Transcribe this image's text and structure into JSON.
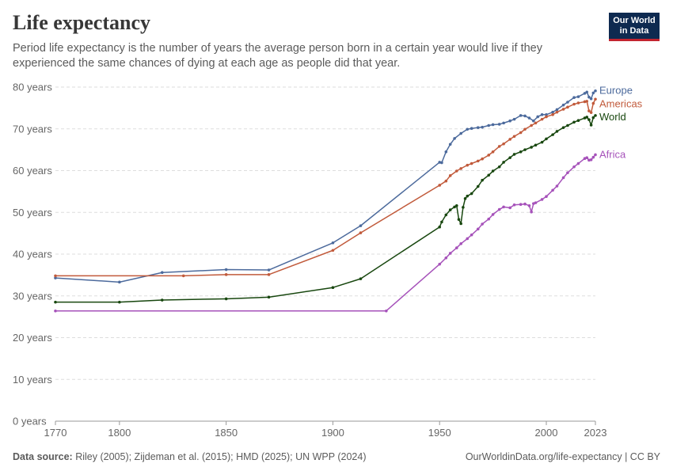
{
  "header": {
    "title": "Life expectancy",
    "subtitle": "Period life expectancy is the number of years the average person born in a certain year would live if they experienced the same chances of dying at each age as people did that year.",
    "logo_line1": "Our World",
    "logo_line2": "in Data"
  },
  "footer": {
    "source_label": "Data source:",
    "source_text": "Riley (2005); Zijdeman et al. (2015); HMD (2025); UN WPP (2024)",
    "link_text": "OurWorldinData.org/life-expectancy | CC BY"
  },
  "colors": {
    "Europe": "#4c6a9c",
    "Americas": "#c15a3b",
    "World": "#18470f",
    "Africa": "#a652ba"
  },
  "chart_data": {
    "type": "line",
    "title": "Life expectancy",
    "xlim": [
      1770,
      2023
    ],
    "ylim": [
      0,
      80
    ],
    "x_ticks": [
      {
        "value": 1770,
        "label": "1770"
      },
      {
        "value": 1800,
        "label": "1800"
      },
      {
        "value": 1850,
        "label": "1850"
      },
      {
        "value": 1900,
        "label": "1900"
      },
      {
        "value": 1950,
        "label": "1950"
      },
      {
        "value": 2000,
        "label": "2000"
      },
      {
        "value": 2023,
        "label": "2023"
      }
    ],
    "y_ticks": [
      {
        "value": 0,
        "label": "0 years"
      },
      {
        "value": 10,
        "label": "10 years"
      },
      {
        "value": 20,
        "label": "20 years"
      },
      {
        "value": 30,
        "label": "30 years"
      },
      {
        "value": 40,
        "label": "40 years"
      },
      {
        "value": 50,
        "label": "50 years"
      },
      {
        "value": 60,
        "label": "60 years"
      },
      {
        "value": 70,
        "label": "70 years"
      },
      {
        "value": 80,
        "label": "80 years"
      }
    ],
    "grid": true,
    "series": [
      {
        "name": "Europe",
        "x": [
          1770,
          1800,
          1820,
          1850,
          1870,
          1900,
          1913,
          1950,
          1951,
          1953,
          1955,
          1957,
          1960,
          1963,
          1965,
          1968,
          1970,
          1973,
          1975,
          1978,
          1980,
          1983,
          1985,
          1988,
          1990,
          1992,
          1994,
          1996,
          1998,
          2000,
          2003,
          2005,
          2008,
          2010,
          2013,
          2015,
          2018,
          2019,
          2020,
          2021,
          2022,
          2023
        ],
        "y": [
          34.3,
          33.3,
          35.6,
          36.3,
          36.2,
          42.7,
          46.8,
          62,
          61.9,
          64.5,
          66.3,
          67.7,
          68.9,
          69.9,
          70.1,
          70.3,
          70.4,
          70.8,
          71,
          71.1,
          71.4,
          71.9,
          72.3,
          73.2,
          73.1,
          72.6,
          71.9,
          72.9,
          73.4,
          73.4,
          74,
          74.6,
          75.7,
          76.4,
          77.5,
          77.7,
          78.5,
          78.8,
          77.6,
          77.2,
          78.6,
          79.1
        ]
      },
      {
        "name": "Americas",
        "x": [
          1770,
          1830,
          1850,
          1870,
          1900,
          1913,
          1950,
          1953,
          1955,
          1958,
          1960,
          1963,
          1965,
          1968,
          1970,
          1973,
          1975,
          1978,
          1980,
          1983,
          1985,
          1988,
          1990,
          1993,
          1995,
          1998,
          2000,
          2003,
          2005,
          2008,
          2010,
          2013,
          2015,
          2018,
          2019,
          2020,
          2021,
          2022,
          2023
        ],
        "y": [
          34.8,
          34.8,
          35.1,
          35.1,
          40.9,
          45.1,
          56.5,
          57.5,
          58.8,
          59.9,
          60.5,
          61.3,
          61.7,
          62.3,
          62.8,
          63.7,
          64.5,
          65.8,
          66.4,
          67.5,
          68.2,
          69.1,
          69.9,
          70.8,
          71.4,
          72.3,
          72.9,
          73.4,
          74,
          74.7,
          75.2,
          75.9,
          76.2,
          76.5,
          76.6,
          74.3,
          73.9,
          76.1,
          77.1
        ]
      },
      {
        "name": "World",
        "x": [
          1770,
          1800,
          1820,
          1850,
          1870,
          1900,
          1913,
          1950,
          1951,
          1953,
          1955,
          1957,
          1958,
          1959,
          1960,
          1961,
          1962,
          1963,
          1965,
          1968,
          1970,
          1973,
          1975,
          1978,
          1980,
          1983,
          1985,
          1988,
          1990,
          1993,
          1995,
          1998,
          2000,
          2003,
          2005,
          2008,
          2010,
          2013,
          2015,
          2018,
          2019,
          2020,
          2021,
          2022,
          2023
        ],
        "y": [
          28.5,
          28.5,
          29,
          29.3,
          29.7,
          32,
          34.1,
          46.5,
          47.7,
          49.4,
          50.6,
          51.3,
          51.6,
          48.3,
          47.3,
          51.2,
          53.3,
          53.9,
          54.5,
          56.2,
          57.7,
          58.9,
          59.9,
          60.9,
          62,
          63.1,
          63.9,
          64.5,
          65,
          65.6,
          66.1,
          66.8,
          67.6,
          68.6,
          69.4,
          70.3,
          70.8,
          71.6,
          72,
          72.6,
          72.8,
          72.2,
          70.9,
          72.7,
          73.2
        ]
      },
      {
        "name": "Africa",
        "x": [
          1770,
          1925,
          1950,
          1953,
          1955,
          1958,
          1960,
          1963,
          1965,
          1968,
          1970,
          1973,
          1975,
          1978,
          1980,
          1983,
          1985,
          1988,
          1990,
          1992,
          1993,
          1994,
          1995,
          1998,
          2000,
          2003,
          2005,
          2008,
          2010,
          2013,
          2015,
          2018,
          2019,
          2020,
          2021,
          2022,
          2023
        ],
        "y": [
          26.4,
          26.4,
          37.6,
          39.1,
          40.2,
          41.5,
          42.5,
          43.7,
          44.6,
          46,
          47.2,
          48.4,
          49.5,
          50.7,
          51.3,
          51.1,
          51.8,
          51.9,
          52,
          51.6,
          50.1,
          52.1,
          52.3,
          53.1,
          53.8,
          55.3,
          56.3,
          58.3,
          59.5,
          60.9,
          61.7,
          62.9,
          63.1,
          62.5,
          62.6,
          63.2,
          63.8
        ]
      }
    ]
  }
}
